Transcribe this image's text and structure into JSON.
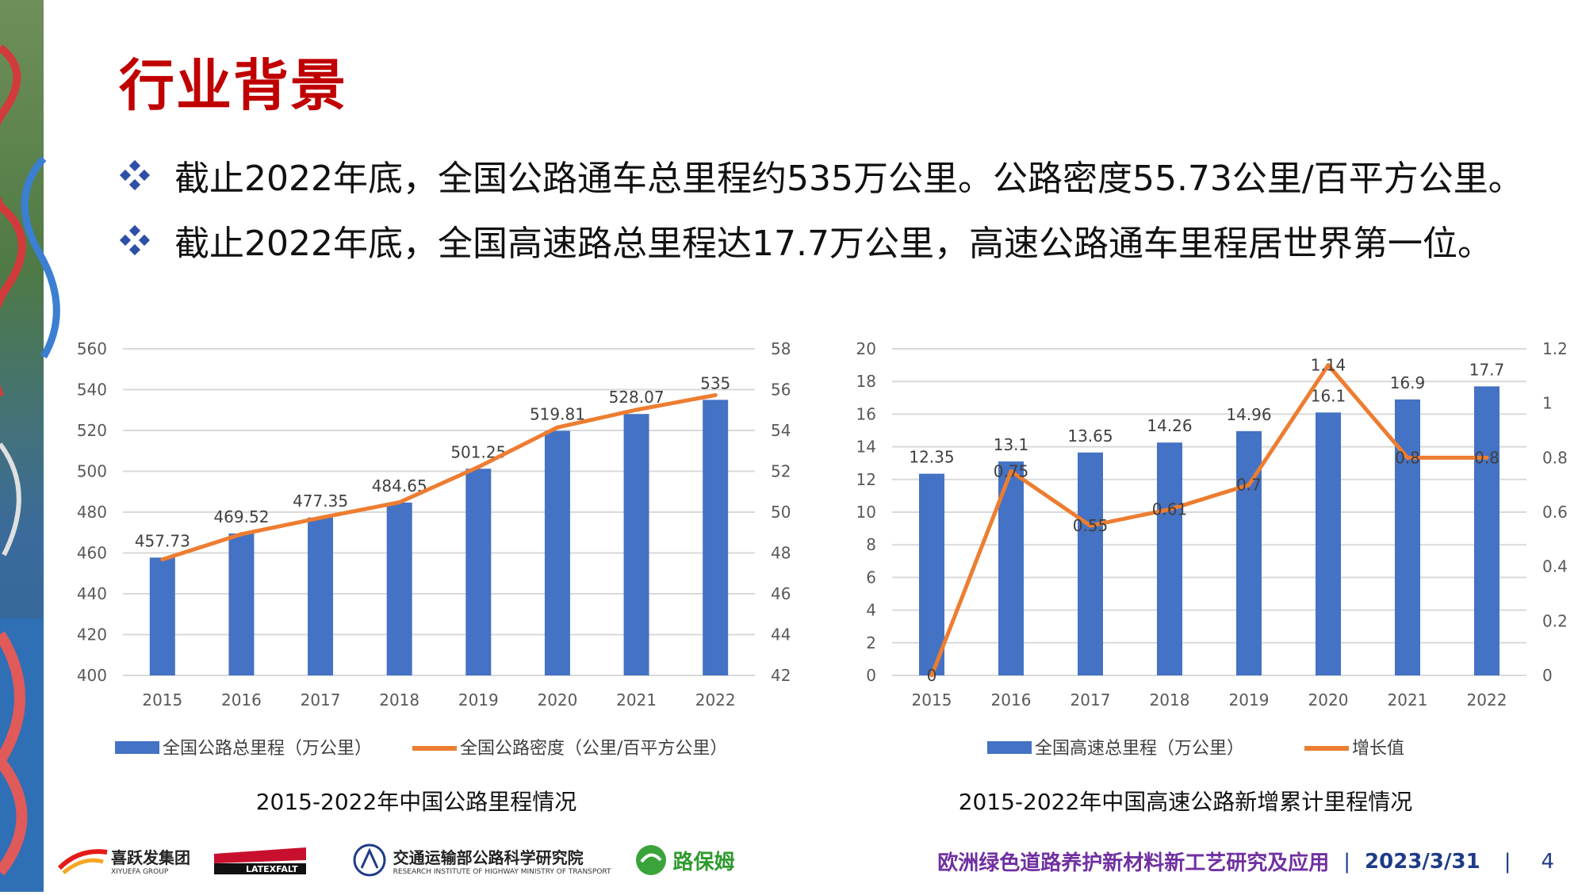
{
  "page": {
    "title": "行业背景",
    "bullets": [
      "截止2022年底，全国公路通车总里程约535万公里。公路密度55.73公里/百平方公里。",
      "截止2022年底，全国高速路总里程达17.7万公里，高速公路通车里程居世界第一位。"
    ],
    "bullet_icon": "diamond-bullet-icon"
  },
  "colors": {
    "title": "#c00000",
    "bar": "#4472c4",
    "line": "#ed7d31",
    "footer_title": "#7030a0",
    "footer_date": "#1f3c88"
  },
  "chart_data": [
    {
      "type": "bar",
      "caption": "2015-2022年中国公路里程情况",
      "categories": [
        "2015",
        "2016",
        "2017",
        "2018",
        "2019",
        "2020",
        "2021",
        "2022"
      ],
      "series": [
        {
          "name": "全国公路总里程（万公里）",
          "type": "bar",
          "axis": "left",
          "values": [
            457.73,
            469.52,
            477.35,
            484.65,
            501.25,
            519.81,
            528.07,
            535
          ],
          "labels": [
            "457.73",
            "469.52",
            "477.35",
            "484.65",
            "501.25",
            "519.81",
            "528.07",
            "535"
          ]
        },
        {
          "name": "全国公路密度（公里/百平方公里）",
          "type": "line",
          "axis": "right",
          "values": [
            47.68,
            48.92,
            49.72,
            50.48,
            52.21,
            54.15,
            55.01,
            55.73
          ]
        }
      ],
      "ylim_left": [
        400,
        560
      ],
      "yticks_left": [
        "400",
        "420",
        "440",
        "460",
        "480",
        "500",
        "520",
        "540",
        "560"
      ],
      "ylim_right": [
        42,
        58
      ],
      "yticks_right": [
        "42",
        "44",
        "46",
        "48",
        "50",
        "52",
        "54",
        "56",
        "58"
      ],
      "grid": true,
      "legend": "bottom"
    },
    {
      "type": "bar",
      "caption": "2015-2022年中国高速公路新增累计里程情况",
      "categories": [
        "2015",
        "2016",
        "2017",
        "2018",
        "2019",
        "2020",
        "2021",
        "2022"
      ],
      "series": [
        {
          "name": "全国高速总里程（万公里）",
          "type": "bar",
          "axis": "left",
          "values": [
            12.35,
            13.1,
            13.65,
            14.26,
            14.96,
            16.1,
            16.9,
            17.7
          ],
          "labels": [
            "12.35",
            "13.1",
            "13.65",
            "14.26",
            "14.96",
            "16.1",
            "16.9",
            "17.7"
          ]
        },
        {
          "name": "增长值",
          "type": "line",
          "axis": "right",
          "values": [
            0,
            0.75,
            0.55,
            0.61,
            0.7,
            1.14,
            0.8,
            0.8
          ],
          "labels": [
            "0",
            "0.75",
            "0.55",
            "0.61",
            "0.7",
            "1.14",
            "0.8",
            "0.8"
          ]
        }
      ],
      "ylim_left": [
        0,
        20
      ],
      "yticks_left": [
        "0",
        "2",
        "4",
        "6",
        "8",
        "10",
        "12",
        "14",
        "16",
        "18",
        "20"
      ],
      "ylim_right": [
        0,
        1.2
      ],
      "yticks_right": [
        "0",
        "0.2",
        "0.4",
        "0.6",
        "0.8",
        "1",
        "1.2"
      ],
      "grid": true,
      "legend": "bottom"
    }
  ],
  "footer": {
    "logos": [
      {
        "name": "xiyuefa-logo",
        "text": "喜跃发集团",
        "sub": "XIYUEFA GROUP"
      },
      {
        "name": "latexfalt-logo",
        "text": "LATEXFALT"
      },
      {
        "name": "rioh-logo",
        "text": "交通运输部公路科学研究院",
        "sub": "RESEARCH INSTITUTE OF HIGHWAY MINISTRY OF TRANSPORT"
      },
      {
        "name": "lubaoyang-logo",
        "text": "路保姆"
      }
    ],
    "title": "欧洲绿色道路养护新材料新工艺研究及应用",
    "date": "2023/3/31",
    "page_number": "4"
  }
}
